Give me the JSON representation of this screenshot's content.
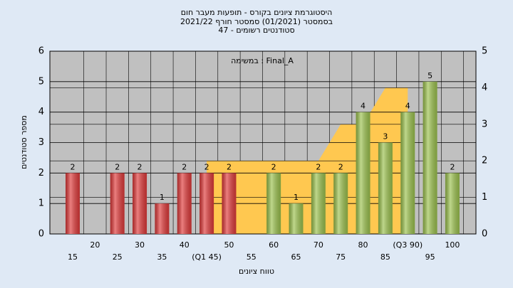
{
  "chart_data": {
    "type": "bar",
    "title": [
      "היסטוגרמת ציונים בקורס - תופעות מעבר חום",
      "בסמסטר  (01/2021)  סמסטר חורף 2021/22",
      "47 - סטודנטים רשומים"
    ],
    "annotation": "במשימה : Final_A",
    "ylabel": "מספר סטודנטים",
    "xlabel": "טווח ציונים",
    "categories": [
      "15",
      "20",
      "25",
      "30",
      "35",
      "40",
      "(Q1 45)",
      "50",
      "55",
      "60",
      "65",
      "70",
      "75",
      "80",
      "85",
      "(Q3 90)",
      "95",
      "100"
    ],
    "values": [
      2,
      null,
      2,
      2,
      1,
      2,
      2,
      2,
      null,
      2,
      1,
      2,
      2,
      4,
      3,
      4,
      5,
      2
    ],
    "colors": [
      "#e03a3a",
      "#e03a3a",
      "#e03a3a",
      "#e03a3a",
      "#e03a3a",
      "#e03a3a",
      "#e03a3a",
      "#e03a3a",
      "#e03a3a",
      "#9cc24e",
      "#9cc24e",
      "#9cc24e",
      "#9cc24e",
      "#9cc24e",
      "#9cc24e",
      "#9cc24e",
      "#9cc24e",
      "#9cc24e"
    ],
    "area": {
      "axis": "y2",
      "color": "#ffc850",
      "values": [
        null,
        null,
        null,
        null,
        null,
        null,
        2,
        2,
        2,
        2,
        2,
        2,
        3,
        3,
        4,
        4,
        null,
        null
      ]
    },
    "ylim": [
      0,
      6
    ],
    "yticks": [
      0,
      1,
      2,
      3,
      4,
      5,
      6
    ],
    "y2lim": [
      0,
      5
    ],
    "y2ticks": [
      0,
      1,
      2,
      3,
      4,
      5
    ],
    "grid": true
  }
}
